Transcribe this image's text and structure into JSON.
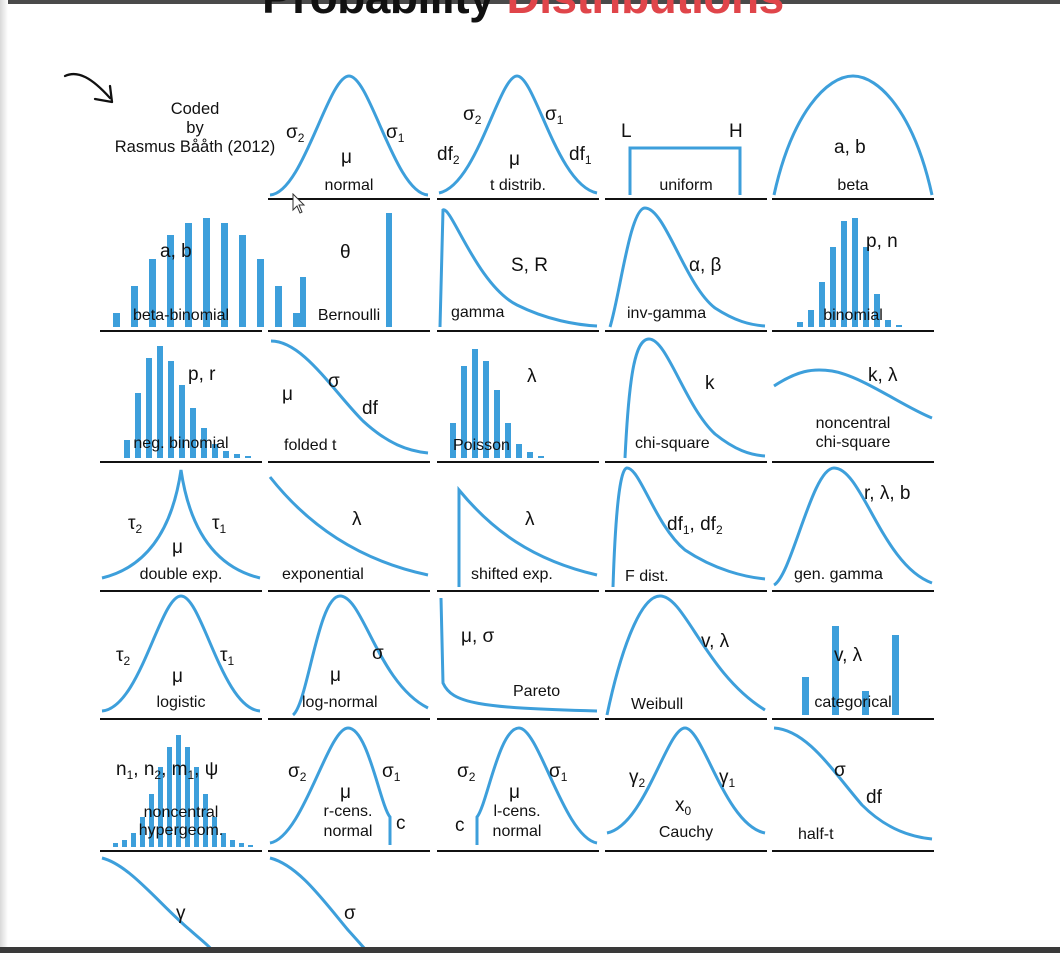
{
  "title": {
    "word1": "Probability",
    "word2": "Distributions",
    "accent": "#e0454a"
  },
  "credit": {
    "line1": "Coded",
    "line2": "by",
    "line3": "Rasmus Bååth (2012)"
  },
  "curve_color": "#3d9fdb",
  "cells": {
    "normal": {
      "label": "normal",
      "mu": "μ",
      "s1": "σ",
      "s2": "σ",
      "sub1": "1",
      "sub2": "2"
    },
    "tdist": {
      "label": "t distrib.",
      "mu": "μ",
      "s": "σ",
      "df": "df",
      "sub1": "1",
      "sub2": "2"
    },
    "uniform": {
      "label": "uniform",
      "L": "L",
      "H": "H"
    },
    "beta": {
      "label": "beta",
      "params": "a, b"
    },
    "betabinom": {
      "label": "beta-binomial",
      "params": "a, b",
      "bars": [
        0.12,
        0.35,
        0.58,
        0.78,
        0.88,
        0.92,
        0.88,
        0.78,
        0.58,
        0.35,
        0.12
      ]
    },
    "bernoulli": {
      "label": "Bernoulli",
      "params": "θ",
      "bars": [
        0.42,
        0.97
      ]
    },
    "gamma": {
      "label": "gamma",
      "params": "S, R"
    },
    "invgamma": {
      "label": "inv-gamma",
      "params": "α, β"
    },
    "binomial": {
      "label": "binomial",
      "params": "p, n",
      "bars": [
        0.04,
        0.14,
        0.38,
        0.68,
        0.9,
        0.92,
        0.68,
        0.28,
        0.06,
        0.02
      ]
    },
    "negbinom": {
      "label": "neg. binomial",
      "params": "p, r",
      "bars": [
        0.15,
        0.55,
        0.85,
        0.95,
        0.82,
        0.62,
        0.42,
        0.25,
        0.12,
        0.06,
        0.03,
        0.02
      ]
    },
    "foldedt": {
      "label": "folded t",
      "mu": "μ",
      "sigma": "σ",
      "df": "df"
    },
    "poisson": {
      "label": "Poisson",
      "params": "λ",
      "bars": [
        0.3,
        0.78,
        0.92,
        0.82,
        0.58,
        0.3,
        0.12,
        0.05,
        0.02
      ]
    },
    "chisq": {
      "label": "chi-square",
      "params": "k"
    },
    "ncchisq": {
      "label1": "noncentral",
      "label2": "chi-square",
      "params": "k, λ"
    },
    "doubleexp": {
      "label": "double exp.",
      "mu": "μ",
      "t": "τ",
      "sub1": "1",
      "sub2": "2"
    },
    "exponential": {
      "label": "exponential",
      "params": "λ"
    },
    "shiftedexp": {
      "label": "shifted exp.",
      "params": "λ"
    },
    "fdist": {
      "label": "F dist.",
      "df": "df",
      "sep": ", ",
      "sub1": "1",
      "sub2": "2"
    },
    "gengamma": {
      "label": "gen. gamma",
      "params": "r, λ, b"
    },
    "logistic": {
      "label": "logistic",
      "mu": "μ",
      "t": "τ",
      "sub1": "1",
      "sub2": "2"
    },
    "lognormal": {
      "label": "log-normal",
      "mu": "μ",
      "sigma": "σ"
    },
    "pareto": {
      "label": "Pareto",
      "params": "μ, σ"
    },
    "weibull": {
      "label": "Weibull",
      "params": "v, λ"
    },
    "categorical": {
      "label": "categorical",
      "params": "v, λ",
      "bars": [
        0.32,
        0,
        0.75,
        0,
        0.2,
        0,
        0.68
      ]
    },
    "hypergeom": {
      "label1": "noncentral",
      "label2": "hypergeom.",
      "n": "n",
      "m": "m",
      "psi": "ψ",
      "sep": ", ",
      "sub1": "1",
      "sub2": "2",
      "bars": [
        0.03,
        0.06,
        0.12,
        0.25,
        0.45,
        0.68,
        0.85,
        0.95,
        0.85,
        0.68,
        0.45,
        0.25,
        0.12,
        0.06,
        0.03,
        0.02
      ]
    },
    "rcens": {
      "label1": "r-cens.",
      "label2": "normal",
      "mu": "μ",
      "s": "σ",
      "c": "c",
      "sub1": "1",
      "sub2": "2"
    },
    "lcens": {
      "label1": "l-cens.",
      "label2": "normal",
      "mu": "μ",
      "s": "σ",
      "c": "c",
      "sub1": "1",
      "sub2": "2"
    },
    "cauchy": {
      "label": "Cauchy",
      "x": "x",
      "g": "γ",
      "sub0": "0",
      "sub1": "1",
      "sub2": "2"
    },
    "halft": {
      "label": "half-t",
      "sigma": "σ",
      "df": "df"
    },
    "row7a": {
      "params": "γ"
    },
    "row7b": {
      "params": "σ"
    }
  }
}
